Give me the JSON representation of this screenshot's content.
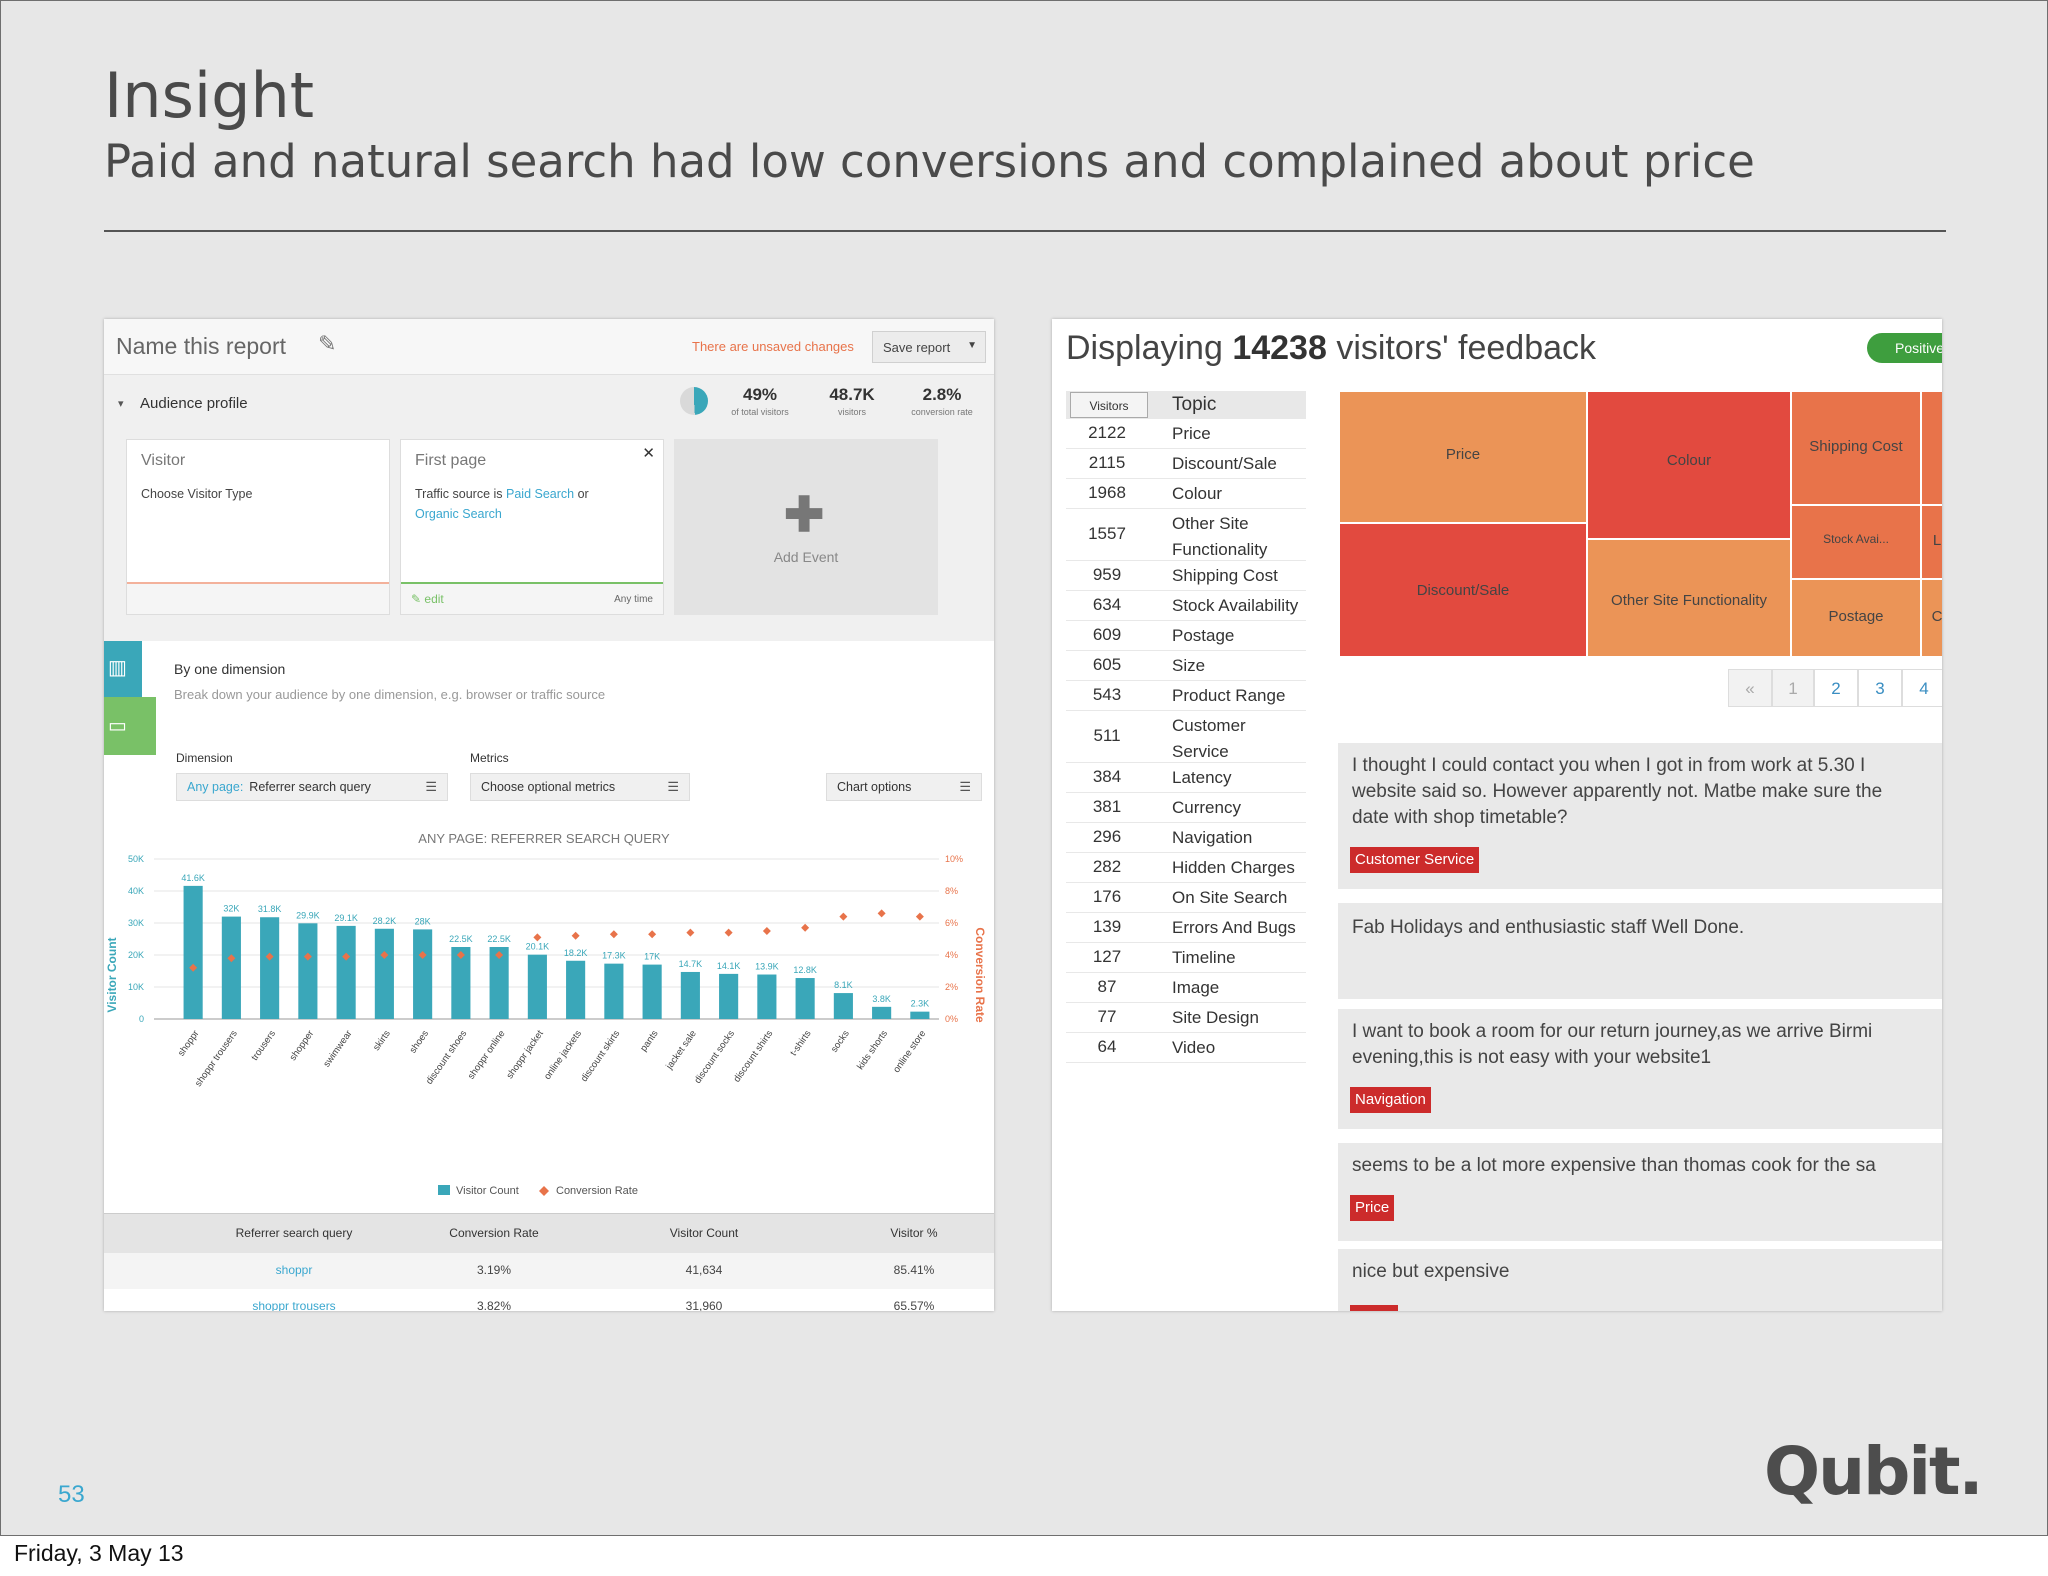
{
  "slide": {
    "title": "Insight",
    "subtitle": "Paid and natural search had low conversions and complained about price",
    "page_number": "53",
    "logo": "Qubit.",
    "footer_date": "Friday, 3 May 13"
  },
  "report": {
    "name": "Name this report",
    "unsaved": "There are unsaved changes",
    "save_button": "Save report",
    "audience_profile": "Audience profile",
    "kpis": [
      {
        "value": "49%",
        "label": "of total visitors"
      },
      {
        "value": "48.7K",
        "label": "visitors"
      },
      {
        "value": "2.8%",
        "label": "conversion rate"
      }
    ],
    "visitor_card": {
      "header": "Visitor",
      "body": "Choose Visitor Type"
    },
    "first_page_card": {
      "header": "First page",
      "body_prefix": "Traffic source is",
      "link1": "Paid Search",
      "or": "or",
      "link2": "Organic Search",
      "edit": "edit",
      "any_time": "Any time"
    },
    "add_event": "Add Event",
    "by_one_dimension": "By one dimension",
    "by_one_desc": "Break down your audience by one dimension, e.g. browser or traffic source",
    "dimension_label": "Dimension",
    "dimension_any": "Any page:",
    "dimension_value": "Referrer search query",
    "metrics_label": "Metrics",
    "metrics_value": "Choose optional metrics",
    "chart_options": "Chart options",
    "table": {
      "headers": [
        "Referrer search query",
        "Conversion Rate",
        "Visitor Count",
        "Visitor %"
      ],
      "rows": [
        {
          "query": "shoppr",
          "rate": "3.19%",
          "count": "41,634",
          "pct": "85.41%"
        },
        {
          "query": "shoppr trousers",
          "rate": "3.82%",
          "count": "31,960",
          "pct": "65.57%"
        }
      ]
    }
  },
  "chart_data": {
    "type": "bar",
    "title": "ANY PAGE: REFERRER SEARCH QUERY",
    "ylabel": "Visitor Count",
    "y2label": "Conversion Rate",
    "ylim": [
      0,
      50000
    ],
    "y2lim": [
      0,
      10
    ],
    "yticks": [
      "0",
      "10K",
      "20K",
      "30K",
      "40K",
      "50K"
    ],
    "y2ticks": [
      "0%",
      "2%",
      "4%",
      "6%",
      "8%",
      "10%"
    ],
    "categories": [
      "shoppr",
      "shoppr trousers",
      "trousers",
      "shopper",
      "swimwear",
      "skirts",
      "shoes",
      "discount shoes",
      "shoppr online",
      "shoppr jacket",
      "online jackets",
      "discount skirts",
      "pants",
      "jacket sale",
      "discount socks",
      "discount shirts",
      "t-shirts",
      "socks",
      "kids shorts",
      "online store"
    ],
    "series": [
      {
        "name": "Visitor Count",
        "color": "#3aa7b9",
        "values": [
          41600,
          32000,
          31800,
          29900,
          29100,
          28200,
          28000,
          22500,
          22500,
          20100,
          18200,
          17300,
          17000,
          14700,
          14100,
          13900,
          12800,
          8100,
          3800,
          2300
        ],
        "labels": [
          "41.6K",
          "32K",
          "31.8K",
          "29.9K",
          "29.1K",
          "28.2K",
          "28K",
          "22.5K",
          "22.5K",
          "20.1K",
          "18.2K",
          "17.3K",
          "17K",
          "14.7K",
          "14.1K",
          "13.9K",
          "12.8K",
          "8.1K",
          "3.8K",
          "2.3K"
        ]
      },
      {
        "name": "Conversion Rate",
        "color": "#e8734a",
        "values": [
          3.2,
          3.8,
          3.9,
          3.9,
          3.9,
          4.0,
          4.0,
          4.0,
          4.0,
          5.1,
          5.2,
          5.3,
          5.3,
          5.4,
          5.4,
          5.5,
          5.7,
          6.4,
          6.6,
          6.4
        ]
      }
    ],
    "legend": [
      "Visitor Count",
      "Conversion Rate"
    ],
    "legend_position": "bottom"
  },
  "feedback": {
    "title_prefix": "Displaying",
    "count": "14238",
    "title_suffix": "visitors' feedback",
    "positive_pill": "Positive",
    "visitors_header": "Visitors",
    "topic_header": "Topic",
    "topics": [
      {
        "n": "2122",
        "t": "Price"
      },
      {
        "n": "2115",
        "t": "Discount/Sale"
      },
      {
        "n": "1968",
        "t": "Colour"
      },
      {
        "n": "1557",
        "t": "Other Site Functionality"
      },
      {
        "n": "959",
        "t": "Shipping Cost"
      },
      {
        "n": "634",
        "t": "Stock Availability"
      },
      {
        "n": "609",
        "t": "Postage"
      },
      {
        "n": "605",
        "t": "Size"
      },
      {
        "n": "543",
        "t": "Product Range"
      },
      {
        "n": "511",
        "t": "Customer Service"
      },
      {
        "n": "384",
        "t": "Latency"
      },
      {
        "n": "381",
        "t": "Currency"
      },
      {
        "n": "296",
        "t": "Navigation"
      },
      {
        "n": "282",
        "t": "Hidden Charges"
      },
      {
        "n": "176",
        "t": "On Site Search"
      },
      {
        "n": "139",
        "t": "Errors And Bugs"
      },
      {
        "n": "127",
        "t": "Timeline"
      },
      {
        "n": "87",
        "t": "Image"
      },
      {
        "n": "77",
        "t": "Site Design"
      },
      {
        "n": "64",
        "t": "Video"
      }
    ],
    "treemap": {
      "price": "Price",
      "colour": "Colour",
      "shipping": "Shipping Cost",
      "discount": "Discount/Sale",
      "other": "Other Site Functionality",
      "stock": "Stock Avai...",
      "postage": "Postage",
      "clip_l": "L",
      "clip_c": "C"
    },
    "pager": [
      "«",
      "1",
      "2",
      "3",
      "4"
    ],
    "comments": [
      {
        "lines": [
          "I thought I could contact you when I got in from work at 5.30 I",
          "website said so. However apparently not. Matbe make sure the",
          "date with shop timetable?"
        ],
        "tag": "Customer Service"
      },
      {
        "lines": [
          "Fab Holidays and enthusiastic staff Well Done."
        ],
        "tag": ""
      },
      {
        "lines": [
          "I want to book a room for our return journey,as we arrive Birmi",
          "evening,this is not easy with your website1"
        ],
        "tag": "Navigation"
      },
      {
        "lines": [
          "seems to be a lot more expensive than thomas cook for the sa"
        ],
        "tag": "Price"
      },
      {
        "lines": [
          "nice but expensive"
        ],
        "tag": ""
      }
    ]
  }
}
